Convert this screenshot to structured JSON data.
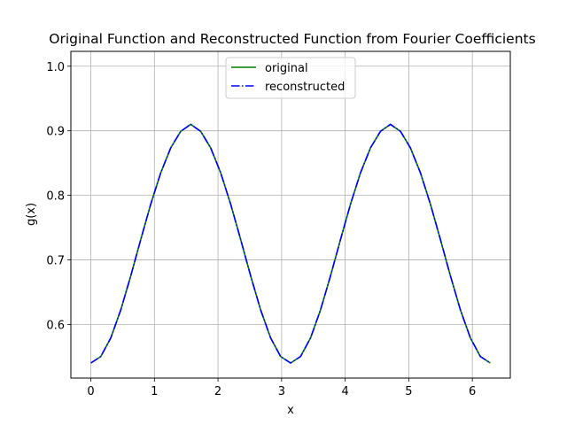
{
  "chart_data": {
    "type": "line",
    "title": "Original Function and Reconstructed Function from Fourier Coefficients",
    "xlabel": "x",
    "ylabel": "g(x)",
    "xlim": [
      -0.314,
      6.597
    ],
    "ylim": [
      0.517,
      1.023
    ],
    "xticks": [
      0,
      1,
      2,
      3,
      4,
      5,
      6
    ],
    "yticks": [
      0.6,
      0.7,
      0.8,
      0.9,
      1.0
    ],
    "ytick_labels": [
      "0.6",
      "0.7",
      "0.8",
      "0.9",
      "1.0"
    ],
    "grid": true,
    "legend_position": "upper center",
    "x": [
      0.0,
      0.1571,
      0.3142,
      0.4712,
      0.6283,
      0.7854,
      0.9425,
      1.0996,
      1.2566,
      1.4137,
      1.5708,
      1.7279,
      1.885,
      2.042,
      2.1991,
      2.3562,
      2.5133,
      2.6704,
      2.8274,
      2.9845,
      3.1416,
      3.2987,
      3.4558,
      3.6128,
      3.7699,
      3.927,
      4.0841,
      4.2412,
      4.3982,
      4.5553,
      4.7124,
      4.8695,
      5.0265,
      5.1836,
      5.3407,
      5.4978,
      5.6549,
      5.812,
      5.969,
      6.1261,
      6.2832
    ],
    "series": [
      {
        "name": "original",
        "color": "#008000",
        "style": "solid",
        "values": [
          0.5403,
          0.5504,
          0.5792,
          0.6227,
          0.6754,
          0.7317,
          0.7864,
          0.8349,
          0.8735,
          0.8991,
          0.91,
          0.8991,
          0.8735,
          0.8349,
          0.7864,
          0.7317,
          0.6754,
          0.6227,
          0.5792,
          0.5504,
          0.5403,
          0.5504,
          0.5792,
          0.6227,
          0.6754,
          0.7317,
          0.7864,
          0.8349,
          0.8735,
          0.8991,
          0.91,
          0.8991,
          0.8735,
          0.8349,
          0.7864,
          0.7317,
          0.6754,
          0.6227,
          0.5792,
          0.5504,
          0.5403
        ]
      },
      {
        "name": "reconstructed",
        "color": "#0000ff",
        "style": "dashdot",
        "values": [
          0.5403,
          0.5504,
          0.5792,
          0.6227,
          0.6754,
          0.7317,
          0.7864,
          0.8349,
          0.8735,
          0.8991,
          0.91,
          0.8991,
          0.8735,
          0.8349,
          0.7864,
          0.7317,
          0.6754,
          0.6227,
          0.5792,
          0.5504,
          0.5403,
          0.5504,
          0.5792,
          0.6227,
          0.6754,
          0.7317,
          0.7864,
          0.8349,
          0.8735,
          0.8991,
          0.91,
          0.8991,
          0.8735,
          0.8349,
          0.7864,
          0.7317,
          0.6754,
          0.6227,
          0.5792,
          0.5504,
          0.5403
        ]
      }
    ]
  }
}
